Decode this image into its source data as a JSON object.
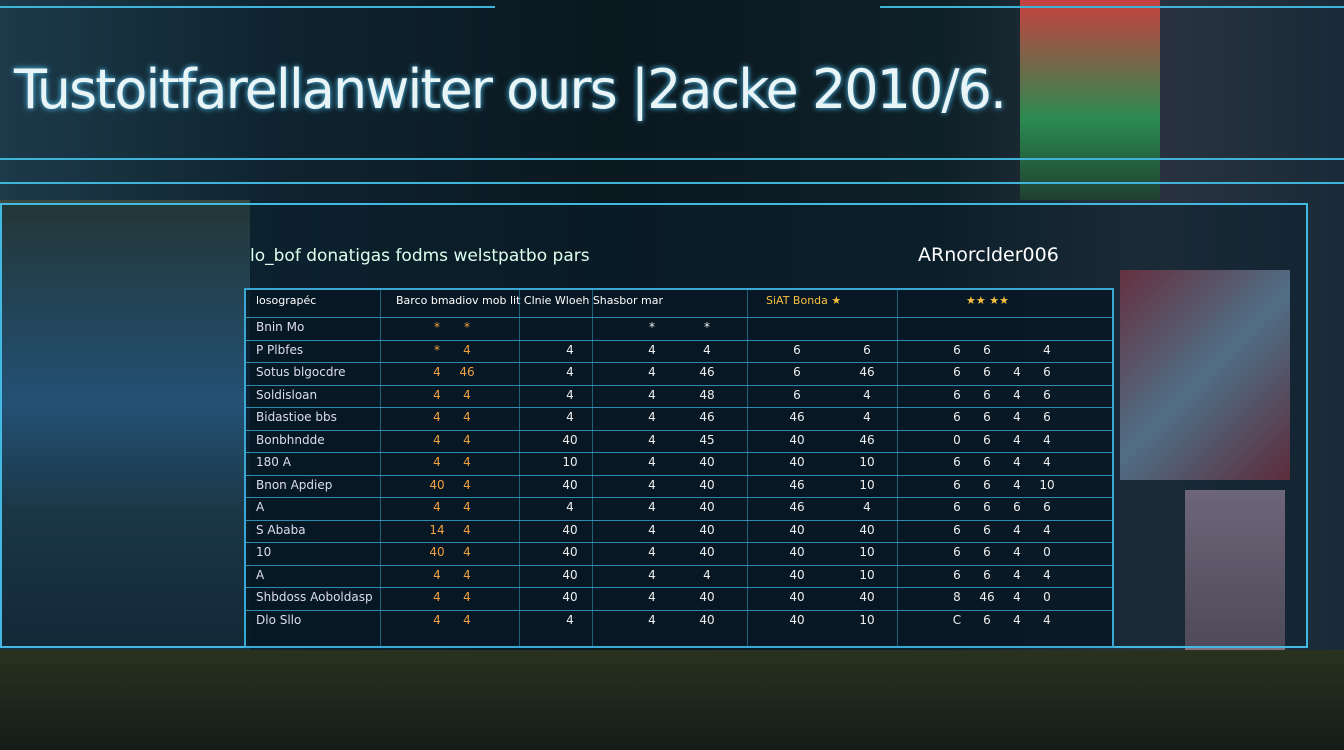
{
  "header": {
    "title": "Tustoitfarellanwiter ours |2acke 2010/6."
  },
  "panel": {
    "subtitle": "lo_bof donatigas fodms welstpatbo pars",
    "badge": "ARnorclder006"
  },
  "table": {
    "headers": [
      "losograpéc",
      "Barco bmadiov mob lit Clnie Wloeh Shasbor mar",
      "SiAT Bonda ★",
      "★★ ★★"
    ],
    "rows": [
      {
        "label": "Bnin  Mo",
        "cells": [
          "*",
          "*",
          "",
          "*",
          "*",
          "",
          "",
          "",
          "",
          "",
          ""
        ]
      },
      {
        "label": "P  Plbfes",
        "cells": [
          "*",
          "4",
          "4",
          "4",
          "4",
          "6",
          "6",
          "6",
          "6",
          "",
          "4"
        ]
      },
      {
        "label": "Sotus  blgocdre",
        "cells": [
          "4",
          "46",
          "4",
          "4",
          "46",
          "6",
          "46",
          "6",
          "6",
          "4",
          "6"
        ]
      },
      {
        "label": "Soldisloan",
        "cells": [
          "4",
          "4",
          "4",
          "4",
          "48",
          "6",
          "4",
          "6",
          "6",
          "4",
          "6"
        ]
      },
      {
        "label": "Bidastioe  bbs",
        "cells": [
          "4",
          "4",
          "4",
          "4",
          "46",
          "46",
          "4",
          "6",
          "6",
          "4",
          "6"
        ]
      },
      {
        "label": "Bonbhndde",
        "cells": [
          "4",
          "4",
          "40",
          "4",
          "45",
          "40",
          "46",
          "0",
          "6",
          "4",
          "4"
        ]
      },
      {
        "label": "180   A",
        "cells": [
          "4",
          "4",
          "10",
          "4",
          "40",
          "40",
          "10",
          "6",
          "6",
          "4",
          "4"
        ]
      },
      {
        "label": "Bnon  Apdiep",
        "cells": [
          "40",
          "4",
          "40",
          "4",
          "40",
          "46",
          "10",
          "6",
          "6",
          "4",
          "10"
        ]
      },
      {
        "label": "A",
        "cells": [
          "4",
          "4",
          "4",
          "4",
          "40",
          "46",
          "4",
          "6",
          "6",
          "6",
          "6"
        ]
      },
      {
        "label": "S  Ababa",
        "cells": [
          "14",
          "4",
          "40",
          "4",
          "40",
          "40",
          "40",
          "6",
          "6",
          "4",
          "4"
        ]
      },
      {
        "label": "10",
        "cells": [
          "40",
          "4",
          "40",
          "4",
          "40",
          "40",
          "10",
          "6",
          "6",
          "4",
          "0"
        ]
      },
      {
        "label": "A",
        "cells": [
          "4",
          "4",
          "40",
          "4",
          "4",
          "40",
          "10",
          "6",
          "6",
          "4",
          "4"
        ]
      },
      {
        "label": "Shbdoss  Aoboldasp",
        "cells": [
          "4",
          "4",
          "40",
          "4",
          "40",
          "40",
          "40",
          "8",
          "46",
          "4",
          "0"
        ]
      },
      {
        "label": "Dlo  Sllo",
        "cells": [
          "4",
          "4",
          "4",
          "4",
          "40",
          "40",
          "10",
          "C",
          "6",
          "4",
          "4"
        ]
      }
    ]
  }
}
